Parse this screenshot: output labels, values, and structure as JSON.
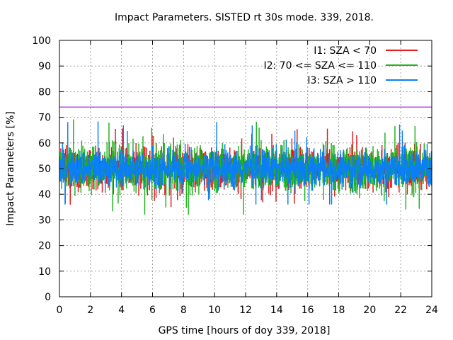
{
  "chart_data": {
    "type": "line",
    "title": "Impact Parameters. SISTED rt 30s mode. 339, 2018.",
    "xlabel": "GPS time [hours of doy 339, 2018]",
    "ylabel": "Impact Parameters [%]",
    "xlim": [
      0,
      24
    ],
    "ylim": [
      0,
      100
    ],
    "x_ticks": [
      "0",
      "2",
      "4",
      "6",
      "8",
      "10",
      "12",
      "14",
      "16",
      "18",
      "20",
      "22",
      "24"
    ],
    "y_ticks": [
      "0",
      "10",
      "20",
      "30",
      "40",
      "50",
      "60",
      "70",
      "80",
      "90",
      "100"
    ],
    "grid": true,
    "legend_position": "top-right",
    "reference_line": {
      "y": 74,
      "color": "#9400d3"
    },
    "series": [
      {
        "name": "I1: SZA < 70",
        "color": "#e41a1c",
        "mean": 50,
        "typical_range": [
          43,
          58
        ],
        "min": 34,
        "max": 66
      },
      {
        "name": "I2: 70 <= SZA <= 110",
        "color": "#1db41d",
        "mean": 50,
        "typical_range": [
          42,
          58
        ],
        "min": 32,
        "max": 70
      },
      {
        "name": "I3: SZA > 110",
        "color": "#0a7ff5",
        "mean": 50,
        "typical_range": [
          44,
          57
        ],
        "min": 36,
        "max": 69
      }
    ]
  }
}
